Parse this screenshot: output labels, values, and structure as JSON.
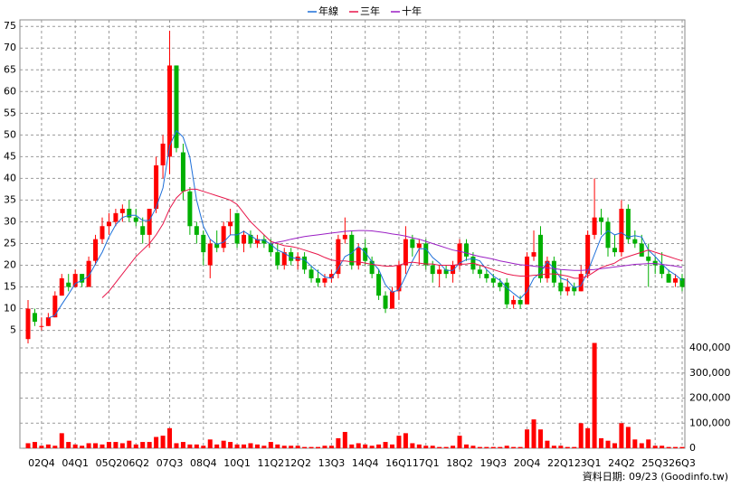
{
  "chart_data": {
    "type": "candlestick",
    "categories": [
      null,
      null,
      "02Q4",
      null,
      null,
      null,
      null,
      "04Q1",
      null,
      null,
      null,
      null,
      "05Q2",
      null,
      null,
      null,
      "06Q2",
      null,
      null,
      null,
      null,
      "07Q3",
      null,
      null,
      null,
      null,
      "08Q4",
      null,
      null,
      null,
      null,
      "10Q1",
      null,
      null,
      null,
      null,
      "11Q2",
      null,
      null,
      null,
      "12Q2",
      null,
      null,
      null,
      null,
      "13Q3",
      null,
      null,
      null,
      null,
      "14Q4",
      null,
      null,
      null,
      null,
      "16Q1",
      null,
      null,
      null,
      "17Q1",
      null,
      null,
      null,
      null,
      "18Q2",
      null,
      null,
      null,
      null,
      "19Q3",
      null,
      null,
      null,
      null,
      "20Q4",
      null,
      null,
      null,
      null,
      "22Q1",
      null,
      null,
      null,
      "23Q1",
      null,
      null,
      null,
      null,
      "24Q2",
      null,
      null,
      null,
      null,
      "25Q3",
      null,
      null,
      null,
      "26Q3"
    ],
    "open": [
      3,
      9,
      6,
      6,
      8,
      13,
      16,
      15,
      18,
      15,
      21,
      26,
      29,
      30,
      32,
      33,
      31,
      29,
      27,
      33,
      43,
      45,
      66,
      46,
      37,
      29,
      27,
      20,
      25,
      24,
      29,
      32,
      25,
      27,
      25,
      26,
      25,
      23,
      20,
      23,
      21,
      22,
      19,
      17,
      16,
      17,
      18,
      26,
      27,
      20,
      24,
      21,
      18,
      13,
      10,
      14,
      20,
      26,
      24,
      25,
      20,
      18,
      19,
      18,
      20,
      25,
      22,
      19,
      18,
      17,
      16,
      16,
      11,
      12,
      11,
      22,
      27,
      17,
      21,
      16,
      14,
      15,
      14,
      18,
      27,
      31,
      30,
      24,
      23,
      33,
      26,
      25,
      22,
      21,
      20,
      18,
      16,
      17
    ],
    "high": [
      12,
      10,
      8,
      9,
      14,
      18,
      18,
      19,
      18,
      22,
      27,
      31,
      32,
      33,
      34,
      35,
      33,
      31,
      33,
      45,
      50,
      74,
      66,
      48,
      38,
      30,
      28,
      26,
      28,
      30,
      33,
      32,
      28,
      28,
      27,
      27,
      26,
      25,
      24,
      24,
      23,
      23,
      20,
      19,
      18,
      19,
      27,
      31,
      28,
      25,
      26,
      22,
      19,
      14,
      15,
      21,
      29,
      27,
      26,
      26,
      21,
      20,
      20,
      21,
      26,
      26,
      23,
      20,
      19,
      18,
      17,
      17,
      13,
      13,
      23,
      28,
      29,
      22,
      22,
      19,
      17,
      16,
      20,
      28,
      40,
      33,
      31,
      27,
      35,
      34,
      28,
      27,
      25,
      22,
      23,
      19,
      18,
      18
    ],
    "low": [
      2,
      6,
      5,
      6,
      8,
      13,
      14,
      15,
      15,
      15,
      20,
      25,
      27,
      29,
      30,
      30,
      29,
      25,
      24,
      32,
      40,
      41,
      46,
      35,
      27,
      25,
      20,
      17,
      23,
      23,
      27,
      24,
      23,
      24,
      24,
      24,
      22,
      19,
      19,
      20,
      19,
      18,
      16,
      15,
      15,
      16,
      17,
      25,
      19,
      19,
      20,
      17,
      12,
      9,
      10,
      12,
      18,
      22,
      20,
      19,
      16,
      15,
      17,
      16,
      19,
      21,
      18,
      17,
      16,
      15,
      14,
      10,
      10,
      10,
      11,
      21,
      16,
      16,
      15,
      13,
      13,
      13,
      14,
      17,
      26,
      27,
      22,
      22,
      22,
      25,
      24,
      22,
      15,
      18,
      17,
      16,
      15,
      14
    ],
    "close": [
      10,
      7,
      6,
      8,
      13,
      17,
      15,
      18,
      16,
      21,
      26,
      29,
      30,
      32,
      33,
      31,
      30,
      27,
      33,
      43,
      48,
      66,
      47,
      37,
      29,
      27,
      23,
      25,
      24,
      29,
      30,
      25,
      27,
      25,
      26,
      25,
      23,
      20,
      23,
      21,
      22,
      19,
      17,
      16,
      17,
      18,
      26,
      27,
      20,
      24,
      21,
      18,
      13,
      10,
      14,
      20,
      26,
      24,
      25,
      20,
      18,
      19,
      18,
      20,
      25,
      22,
      19,
      18,
      17,
      16,
      15,
      11,
      12,
      11,
      22,
      23,
      17,
      21,
      16,
      14,
      15,
      14,
      18,
      27,
      31,
      30,
      24,
      23,
      33,
      26,
      25,
      22,
      21,
      20,
      18,
      16,
      17,
      15
    ],
    "up_color": "#ff0000",
    "down_color": "#00b000",
    "ylim": [
      2,
      76.5
    ],
    "yticks": [
      5,
      10,
      15,
      20,
      25,
      30,
      35,
      40,
      45,
      50,
      55,
      60,
      65,
      70,
      75
    ],
    "series": [
      {
        "name": "年線",
        "color": "#1e6fd9",
        "values": [
          null,
          null,
          null,
          7.8,
          8.5,
          11,
          13.3,
          15.8,
          16.5,
          17.5,
          20.3,
          23,
          26.5,
          29.3,
          31,
          31.5,
          31.5,
          30.3,
          30.3,
          33.3,
          37.8,
          47.5,
          51,
          49.5,
          44.8,
          35,
          29,
          26,
          24.8,
          25.3,
          27,
          27,
          27.8,
          26.8,
          25.8,
          25.8,
          24.8,
          23.5,
          22.8,
          21.8,
          21.5,
          21.3,
          19.8,
          18.5,
          17.3,
          17,
          19.3,
          22,
          22.8,
          24.3,
          23,
          20.8,
          19,
          15.5,
          13.8,
          14.3,
          17.5,
          21,
          23.8,
          23.8,
          21.8,
          20.5,
          18.8,
          18.8,
          20.5,
          21.3,
          21.5,
          21,
          19,
          17.5,
          16.5,
          14.8,
          13.5,
          12.3,
          14,
          17,
          18.3,
          20.8,
          19.3,
          17,
          16.5,
          14.8,
          15.3,
          18.5,
          22.5,
          26.5,
          28,
          27,
          27.5,
          26.5,
          26.8,
          26.5,
          23.5,
          22,
          20.3,
          18.8,
          17.8,
          16.5
        ]
      },
      {
        "name": "三年",
        "color": "#e8164a",
        "values": [
          null,
          null,
          null,
          null,
          null,
          null,
          null,
          null,
          null,
          null,
          null,
          12.5,
          14,
          16,
          18,
          20,
          22,
          23.5,
          25,
          27,
          29.5,
          33,
          35.5,
          37,
          37.5,
          37.5,
          37,
          36.5,
          36,
          35.5,
          35,
          34,
          32,
          30,
          28.5,
          27,
          25.5,
          25,
          24.5,
          24.3,
          24,
          23.5,
          23,
          22.5,
          21.8,
          21.2,
          21,
          21,
          20.8,
          20.8,
          20.5,
          20.2,
          20,
          19.8,
          19.8,
          20,
          20.5,
          20.7,
          20.5,
          20.3,
          20.3,
          20,
          20,
          20,
          20.2,
          20.3,
          20.5,
          20,
          19.5,
          19,
          18.5,
          18,
          17.7,
          17.5,
          17.5,
          17.7,
          17.8,
          18,
          18,
          17.8,
          17.5,
          17,
          17,
          17.5,
          18.5,
          19.5,
          20,
          20.5,
          21.5,
          22,
          22.5,
          23,
          23.5,
          23,
          22.5,
          22,
          21.5,
          21
        ]
      },
      {
        "name": "十年",
        "color": "#9b1fc4",
        "values": [
          null,
          null,
          null,
          null,
          null,
          null,
          null,
          null,
          null,
          null,
          null,
          null,
          null,
          null,
          null,
          null,
          null,
          null,
          null,
          null,
          null,
          null,
          null,
          null,
          null,
          null,
          null,
          null,
          null,
          null,
          null,
          null,
          null,
          null,
          null,
          null,
          25,
          25.3,
          25.6,
          26,
          26.3,
          26.6,
          26.8,
          27,
          27.2,
          27.4,
          27.6,
          27.8,
          27.9,
          28,
          28,
          27.9,
          27.7,
          27.5,
          27.2,
          27,
          26.7,
          26.3,
          26,
          25.5,
          25,
          24.5,
          24,
          23.5,
          23.2,
          22.8,
          22.4,
          22,
          21.7,
          21.4,
          21,
          20.7,
          20.4,
          20.1,
          20,
          19.8,
          19.6,
          19.4,
          19.2,
          19,
          18.9,
          18.8,
          18.8,
          18.9,
          19,
          19.2,
          19.4,
          19.6,
          19.8,
          20,
          20.2,
          20.3,
          20.4,
          20.4,
          20.2,
          20,
          19.8,
          19.5
        ]
      }
    ],
    "volume": {
      "color": "#ff0000",
      "values": [
        20000,
        25000,
        10000,
        15000,
        10000,
        60000,
        25000,
        15000,
        10000,
        20000,
        20000,
        15000,
        25000,
        25000,
        20000,
        30000,
        15000,
        25000,
        25000,
        45000,
        50000,
        80000,
        20000,
        25000,
        15000,
        15000,
        10000,
        35000,
        15000,
        30000,
        25000,
        15000,
        15000,
        20000,
        15000,
        10000,
        25000,
        15000,
        10000,
        10000,
        10000,
        5000,
        5000,
        5000,
        10000,
        10000,
        40000,
        65000,
        15000,
        20000,
        15000,
        10000,
        15000,
        25000,
        15000,
        50000,
        60000,
        20000,
        15000,
        10000,
        10000,
        5000,
        5000,
        10000,
        50000,
        15000,
        10000,
        5000,
        5000,
        5000,
        5000,
        10000,
        5000,
        5000,
        75000,
        115000,
        75000,
        30000,
        10000,
        10000,
        5000,
        5000,
        100000,
        80000,
        420000,
        40000,
        30000,
        20000,
        100000,
        85000,
        35000,
        20000,
        35000,
        10000,
        10000,
        5000,
        5000,
        5000
      ],
      "ylim": [
        0,
        447000
      ],
      "yticks": [
        0,
        {
          "value": 100000,
          "label": "100,000"
        },
        {
          "value": 200000,
          "label": "200,000"
        },
        {
          "value": 300000,
          "label": "300,000"
        },
        {
          "value": 400000,
          "label": "400,000"
        }
      ]
    },
    "grid": true,
    "legend": "top",
    "footer": "資料日期: 09/23 (Goodinfo.tw)"
  }
}
